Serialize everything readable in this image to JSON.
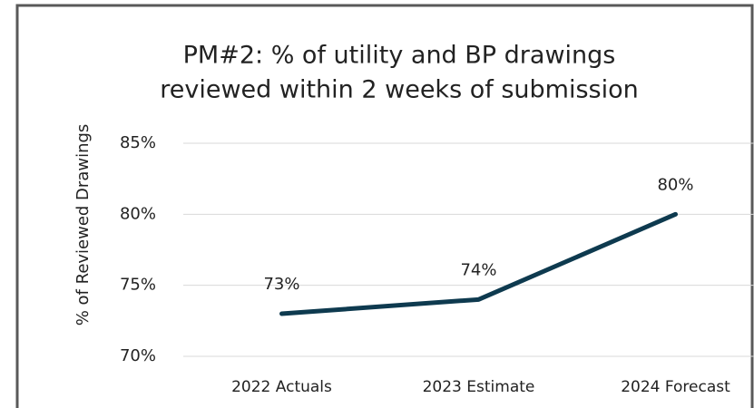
{
  "chart_data": {
    "type": "line",
    "title": [
      "PM#2: % of utility and BP drawings",
      "reviewed within 2 weeks of submission"
    ],
    "y_label": "% of Reviewed Drawings",
    "categories": [
      "2022 Actuals",
      "2023 Estimate",
      "2024 Forecast"
    ],
    "values": [
      73,
      74,
      80
    ],
    "value_labels": [
      "73%",
      "74%",
      "80%"
    ],
    "color": "#0e3a4f",
    "ylim": [
      70,
      85
    ],
    "yticks": [
      {
        "value": 70,
        "label": "70%"
      },
      {
        "value": 75,
        "label": "75%"
      },
      {
        "value": 80,
        "label": "80%"
      },
      {
        "value": 85,
        "label": "85%"
      }
    ],
    "grid": true
  }
}
